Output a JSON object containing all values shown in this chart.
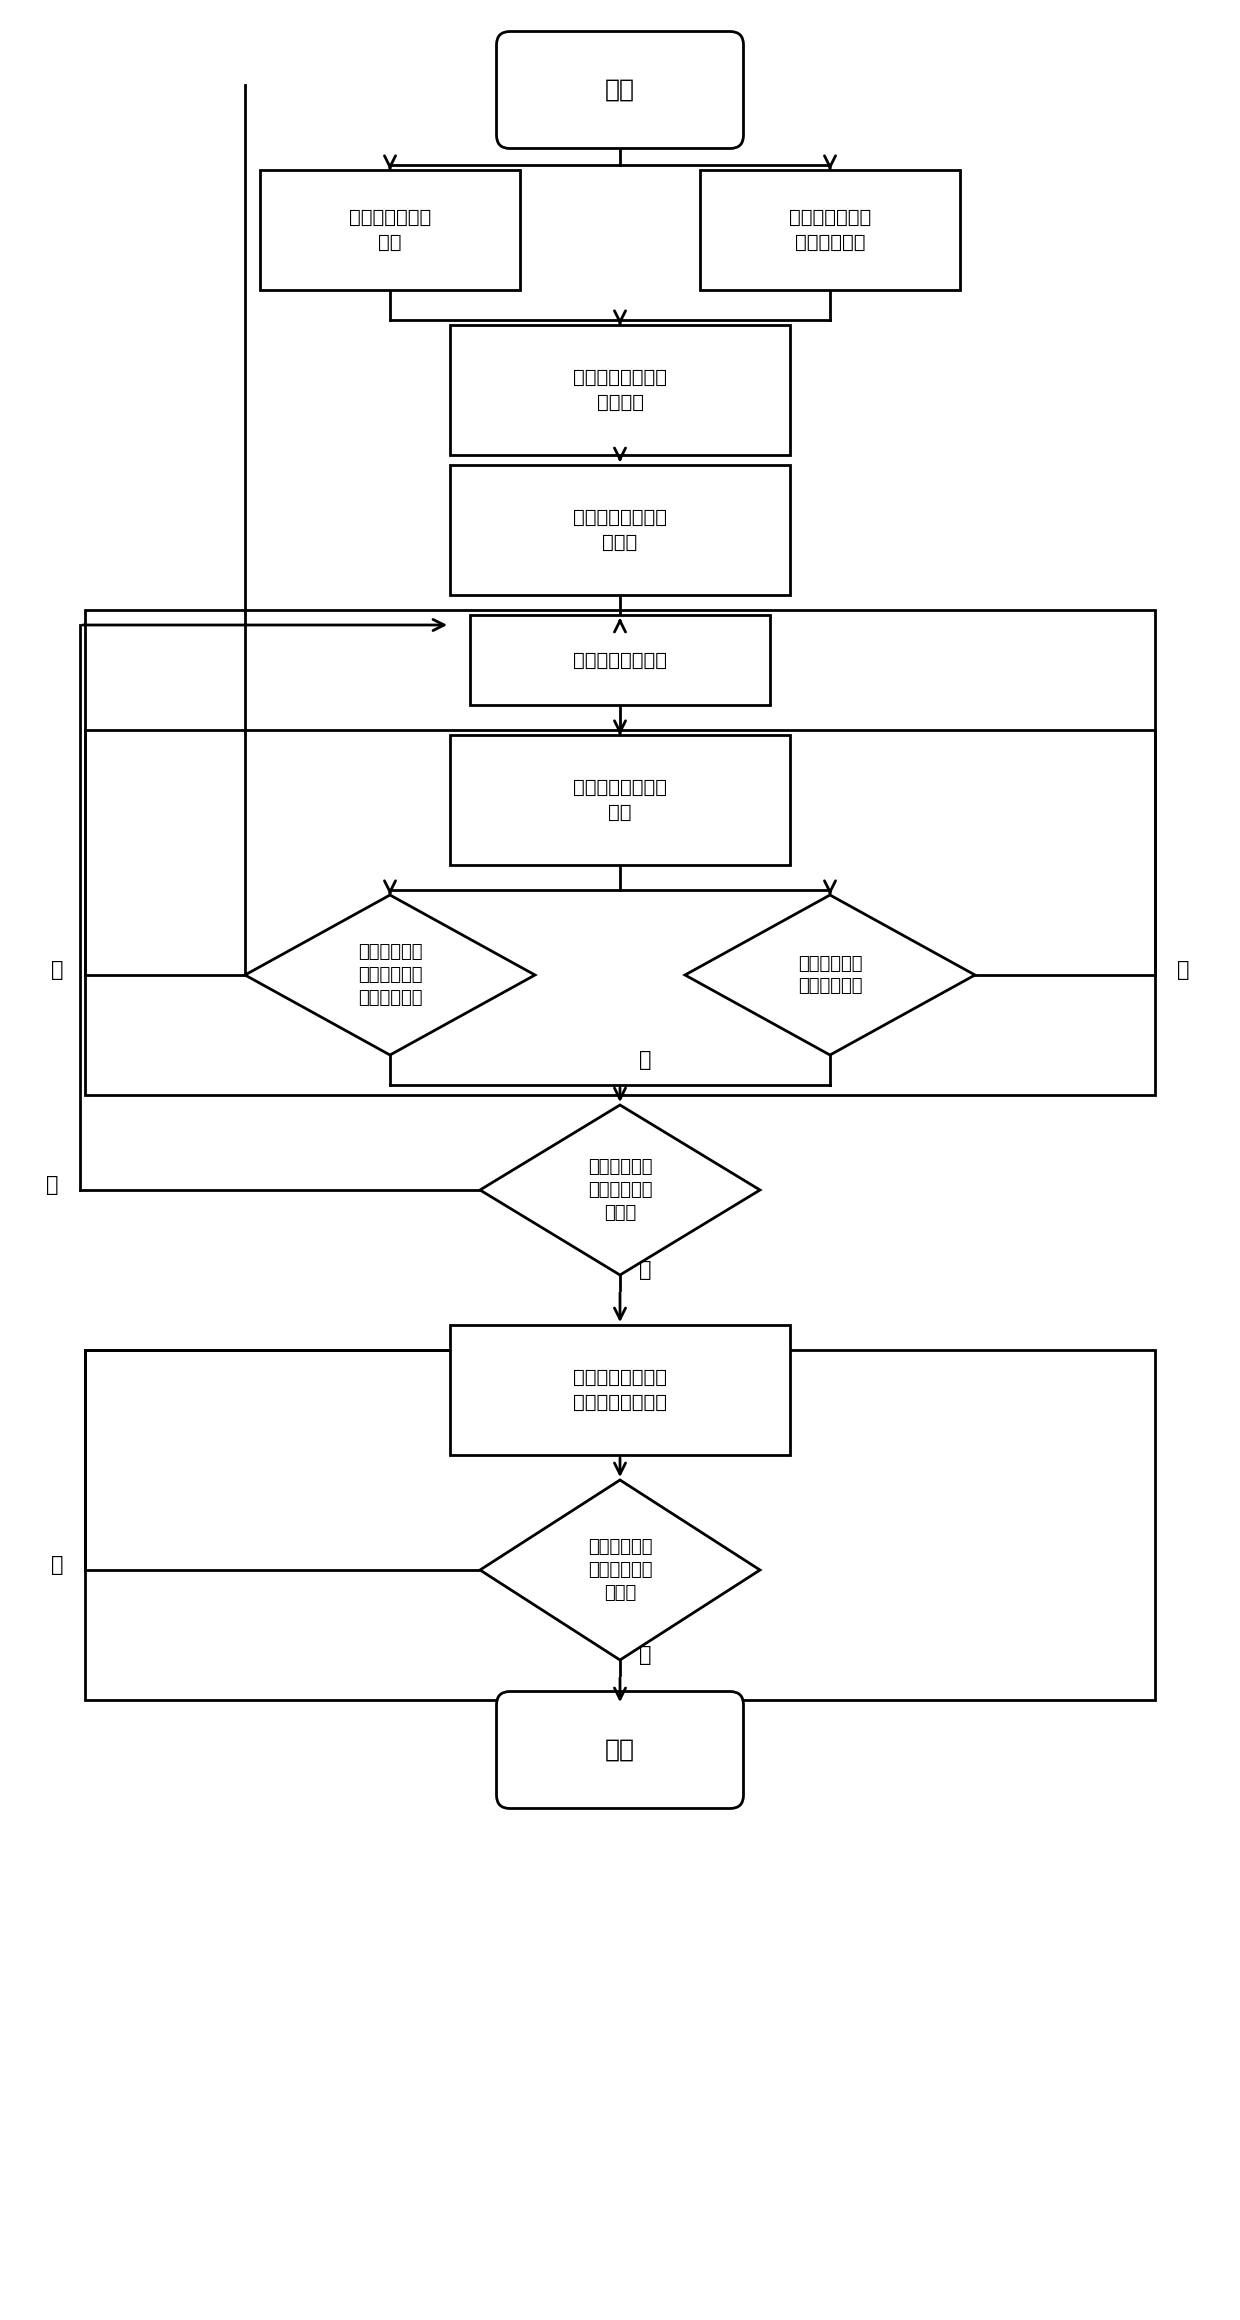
{
  "bg": "#ffffff",
  "lc": "#000000",
  "fc": "#ffffff",
  "fs": 14,
  "lw": 2.0,
  "start_text": "开始",
  "end_text": "结束",
  "box1L_text": "确定执行器故障\n类型",
  "box1R_text": "确定系统外界扰\n动的合理假设",
  "box2_text": "确定二阶多智能体\n系统模型",
  "box3_text": "定义一致性误差跟\n踪系统",
  "box4_text": "选择合适的滑模面",
  "box5_text": "设计容错一致性控\n制律",
  "dia1_text": "证明执行器故\n障上限估计误\n差是否趋于零",
  "dia2_text": "证明是否满足\n滑模面到达率",
  "dia3_text": "一致性误差跟\n踪变量是否渐\n进收敛",
  "box6_text": "调整执行器故障上\n限估计的自适应律",
  "dia4_text": "是否消除滑动\n控制过程的抖\n动问题",
  "yes_text": "是",
  "no_text": "否"
}
